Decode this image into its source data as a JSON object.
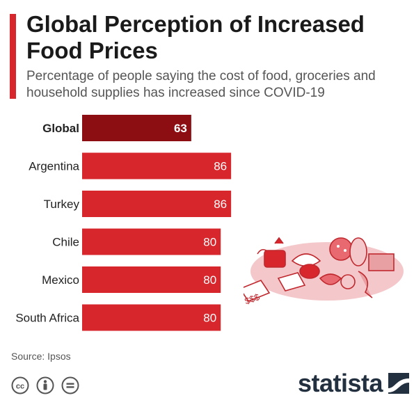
{
  "header": {
    "title": "Global Perception of Increased Food Prices",
    "subtitle": "Percentage of people saying the cost of food, groceries and household supplies has increased since COVID-19"
  },
  "footer": {
    "source": "Source: Ipsos",
    "brand": "statista"
  },
  "colors": {
    "accent": "#d7262c",
    "highlight_bar": "#8c0d12",
    "bar": "#d7262c",
    "brand": "#23303f"
  },
  "icons": [
    "cc-icon",
    "attribution-icon",
    "no-derivatives-icon",
    "statista-logo-icon",
    "food-illustration-icon"
  ],
  "chart_data": {
    "type": "bar",
    "orientation": "horizontal",
    "categories": [
      "Global",
      "Argentina",
      "Turkey",
      "Chile",
      "Mexico",
      "South Africa"
    ],
    "values": [
      63,
      86,
      86,
      80,
      80,
      80
    ],
    "highlight": "Global",
    "value_labels": true,
    "grid": false
  }
}
